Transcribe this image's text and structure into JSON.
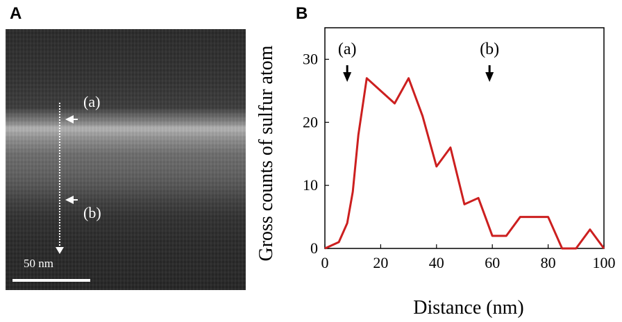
{
  "panels": {
    "a_label": "A",
    "b_label": "B"
  },
  "micrograph": {
    "marker_a": "(a)",
    "marker_b": "(b)",
    "scale_bar": "50 nm"
  },
  "chart_data": {
    "type": "line",
    "title": "",
    "xlabel": "Distance (nm)",
    "ylabel": "Gross counts of sulfur atom",
    "xlim": [
      0,
      100
    ],
    "ylim": [
      0,
      35
    ],
    "xticks": [
      0,
      20,
      40,
      60,
      80,
      100
    ],
    "yticks": [
      0,
      10,
      20,
      30
    ],
    "grid": false,
    "annotations": [
      {
        "text": "(a)",
        "x": 8
      },
      {
        "text": "(b)",
        "x": 59
      }
    ],
    "series": [
      {
        "color": "#cc1f1f",
        "x": [
          0,
          5,
          8,
          10,
          12,
          15,
          20,
          25,
          30,
          35,
          40,
          45,
          50,
          55,
          60,
          65,
          70,
          75,
          80,
          85,
          90,
          95,
          100
        ],
        "y": [
          0,
          1,
          4,
          9,
          18,
          27,
          25,
          23,
          27,
          21,
          13,
          16,
          7,
          8,
          2,
          2,
          5,
          5,
          5,
          0,
          0,
          3,
          0
        ]
      }
    ]
  }
}
